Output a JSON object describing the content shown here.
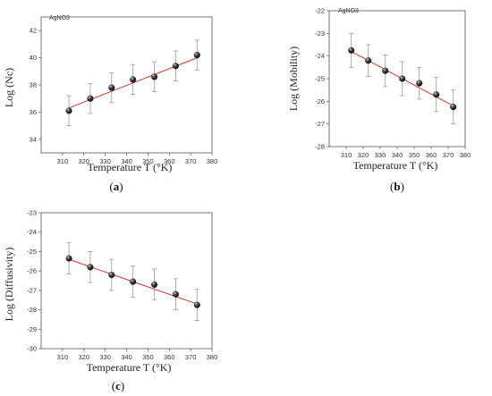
{
  "chart_data": [
    {
      "type": "scatter",
      "annotation": "AgNO3",
      "xlabel": "Temperature T (°K)",
      "ylabel": "Log (Nc)",
      "caption_letter": "a",
      "xlim": [
        300,
        380
      ],
      "ylim": [
        33,
        43
      ],
      "xticks": [
        310,
        320,
        330,
        340,
        350,
        360,
        370,
        380
      ],
      "yticks": [
        34,
        36,
        38,
        40,
        42
      ],
      "series": [
        {
          "x": [
            313,
            323,
            333,
            343,
            353,
            363,
            373
          ],
          "y": [
            36.1,
            37.0,
            37.8,
            38.4,
            38.6,
            39.4,
            40.2
          ],
          "err": [
            1.1,
            1.1,
            1.1,
            1.1,
            1.1,
            1.1,
            1.1
          ]
        }
      ],
      "fit": {
        "x": [
          313,
          373
        ],
        "y": [
          36.3,
          40.0
        ]
      }
    },
    {
      "type": "scatter",
      "annotation": "AgNO3",
      "xlabel": "Temperature T (°K)",
      "ylabel": "Log (Mobility)",
      "caption_letter": "b",
      "xlim": [
        300,
        380
      ],
      "ylim": [
        -28,
        -22
      ],
      "xticks": [
        310,
        320,
        330,
        340,
        350,
        360,
        370,
        380
      ],
      "yticks": [
        -28,
        -27,
        -26,
        -25,
        -24,
        -23,
        -22
      ],
      "series": [
        {
          "x": [
            313,
            323,
            333,
            343,
            353,
            363,
            373
          ],
          "y": [
            -23.75,
            -24.2,
            -24.65,
            -25.0,
            -25.2,
            -25.7,
            -26.25
          ],
          "err": [
            0.75,
            0.7,
            0.7,
            0.75,
            0.7,
            0.75,
            0.75
          ]
        }
      ],
      "fit": {
        "x": [
          313,
          373
        ],
        "y": [
          -23.8,
          -26.2
        ]
      }
    },
    {
      "type": "scatter",
      "xlabel": "Temperature T (°K)",
      "ylabel": "Log (Diffusivity)",
      "caption_letter": "c",
      "xlim": [
        300,
        380
      ],
      "ylim": [
        -30,
        -23
      ],
      "xticks": [
        310,
        320,
        330,
        340,
        350,
        360,
        370,
        380
      ],
      "yticks": [
        -30,
        -29,
        -28,
        -27,
        -26,
        -25,
        -24,
        -23
      ],
      "series": [
        {
          "x": [
            313,
            323,
            333,
            343,
            353,
            363,
            373
          ],
          "y": [
            -25.35,
            -25.8,
            -26.2,
            -26.55,
            -26.7,
            -27.2,
            -27.75
          ],
          "err": [
            0.8,
            0.8,
            0.8,
            0.8,
            0.8,
            0.8,
            0.8
          ]
        }
      ],
      "fit": {
        "x": [
          313,
          373
        ],
        "y": [
          -25.4,
          -27.7
        ]
      }
    }
  ],
  "colors": {
    "fit_line": "#e0322e",
    "marker": "#111111",
    "error_bar": "#9a9a9a",
    "axis": "#555555"
  }
}
